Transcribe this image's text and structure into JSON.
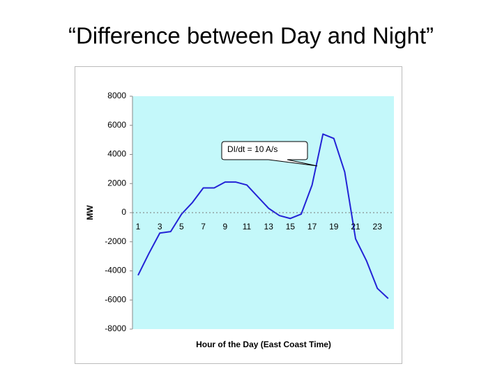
{
  "chart_data": {
    "type": "line",
    "title": "“Difference between Day and Night”",
    "x_label": "Hour of the Day (East Coast Time)",
    "y_label": "MW",
    "annotation": "DI/dt = 10 A/s",
    "categories": [
      "1",
      null,
      "3",
      null,
      "5",
      null,
      "7",
      null,
      "9",
      null,
      "11",
      null,
      "13",
      null,
      "15",
      null,
      "17",
      null,
      "19",
      null,
      "21",
      null,
      "23",
      null
    ],
    "values": [
      -4300,
      -2800,
      -1400,
      -1300,
      -100,
      700,
      1700,
      1700,
      2100,
      2100,
      1900,
      1100,
      300,
      -200,
      -400,
      -100,
      1900,
      5400,
      5100,
      2800,
      -1800,
      -3300,
      -5200,
      -5900
    ],
    "color": "#2323d6",
    "ylim": [
      -8000,
      8000
    ],
    "yticks": [
      -8000,
      -6000,
      -4000,
      -2000,
      0,
      2000,
      4000,
      6000,
      8000
    ],
    "grid": false
  }
}
